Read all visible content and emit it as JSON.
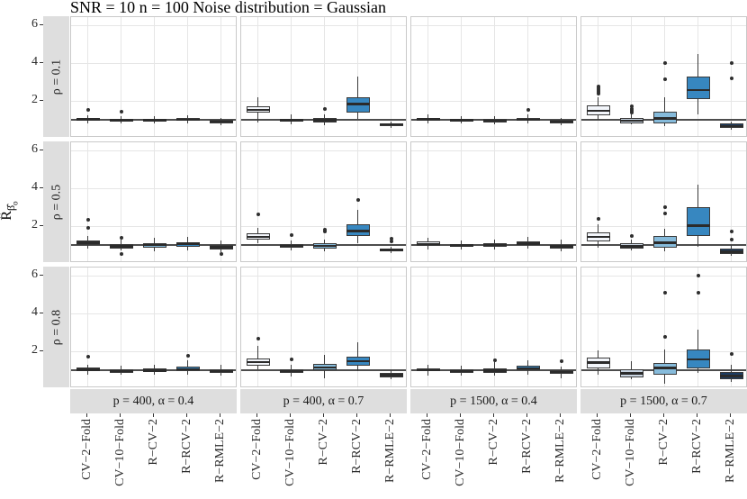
{
  "title": "SNR = 10 n = 100 Noise distribution = Gaussian",
  "y_axis": {
    "main": "R̂",
    "sub": "β̂",
    "subsub": "o",
    "ticks": [
      6,
      4,
      2
    ]
  },
  "chart_data": {
    "type": "boxplot-grid",
    "categories": [
      "CV−2−Fold",
      "CV−10−Fold",
      "R−CV−2",
      "R−RCV−2",
      "R−RMLE−2"
    ],
    "category_fills": [
      "#F2F5FA",
      "#C9D5E2",
      "#86BBDB",
      "#3787C0",
      "#1D3D63"
    ],
    "row_facets": [
      "ρ = 0.1",
      "ρ = 0.5",
      "ρ = 0.8"
    ],
    "col_facets": [
      "p = 400, α = 0.4",
      "p = 400, α = 0.7",
      "p = 1500, α = 0.4",
      "p = 1500, α = 0.7"
    ],
    "ylim": [
      0.07,
      6.45
    ],
    "y_major_gridlines": [
      2,
      4,
      6
    ],
    "reference_line": 1.0,
    "legend": "none",
    "facets": [
      {
        "row": 0,
        "col": 0,
        "boxes": [
          {
            "lo": 0.85,
            "q1": 0.97,
            "med": 1.05,
            "q3": 1.13,
            "hi": 1.28,
            "out": [
              1.55
            ]
          },
          {
            "lo": 0.82,
            "q1": 0.93,
            "med": 1.0,
            "q3": 1.06,
            "hi": 1.2,
            "out": [
              1.45
            ]
          },
          {
            "lo": 0.83,
            "q1": 0.93,
            "med": 1.0,
            "q3": 1.09,
            "hi": 1.22,
            "out": []
          },
          {
            "lo": 0.85,
            "q1": 0.95,
            "med": 1.02,
            "q3": 1.1,
            "hi": 1.27,
            "out": []
          },
          {
            "lo": 0.75,
            "q1": 0.85,
            "med": 0.92,
            "q3": 1.0,
            "hi": 1.1,
            "out": []
          }
        ]
      },
      {
        "row": 0,
        "col": 1,
        "boxes": [
          {
            "lo": 0.9,
            "q1": 1.38,
            "med": 1.55,
            "q3": 1.72,
            "hi": 2.2,
            "out": []
          },
          {
            "lo": 0.78,
            "q1": 0.92,
            "med": 1.0,
            "q3": 1.08,
            "hi": 1.3,
            "out": []
          },
          {
            "lo": 0.72,
            "q1": 0.88,
            "med": 1.0,
            "q3": 1.12,
            "hi": 1.3,
            "out": [
              1.6
            ]
          },
          {
            "lo": 1.05,
            "q1": 1.4,
            "med": 1.85,
            "q3": 2.2,
            "hi": 3.3,
            "out": []
          },
          {
            "lo": 0.6,
            "q1": 0.7,
            "med": 0.78,
            "q3": 0.85,
            "hi": 0.95,
            "out": []
          }
        ]
      },
      {
        "row": 0,
        "col": 2,
        "boxes": [
          {
            "lo": 0.85,
            "q1": 0.97,
            "med": 1.05,
            "q3": 1.13,
            "hi": 1.3,
            "out": []
          },
          {
            "lo": 0.82,
            "q1": 0.93,
            "med": 1.0,
            "q3": 1.07,
            "hi": 1.2,
            "out": []
          },
          {
            "lo": 0.8,
            "q1": 0.9,
            "med": 0.98,
            "q3": 1.07,
            "hi": 1.2,
            "out": []
          },
          {
            "lo": 0.83,
            "q1": 0.95,
            "med": 1.03,
            "q3": 1.12,
            "hi": 1.3,
            "out": [
              1.55
            ]
          },
          {
            "lo": 0.72,
            "q1": 0.85,
            "med": 0.92,
            "q3": 1.0,
            "hi": 1.12,
            "out": []
          }
        ]
      },
      {
        "row": 0,
        "col": 3,
        "boxes": [
          {
            "lo": 1.0,
            "q1": 1.25,
            "med": 1.5,
            "q3": 1.78,
            "hi": 2.2,
            "out": [
              2.4,
              2.5,
              2.6,
              2.7,
              2.8
            ]
          },
          {
            "lo": 0.78,
            "q1": 0.85,
            "med": 0.97,
            "q3": 1.12,
            "hi": 1.3,
            "out": [
              1.4,
              1.5,
              1.6,
              1.72
            ]
          },
          {
            "lo": 0.7,
            "q1": 0.85,
            "med": 1.1,
            "q3": 1.45,
            "hi": 2.2,
            "out": [
              3.15,
              4.0
            ]
          },
          {
            "lo": 1.3,
            "q1": 2.1,
            "med": 2.6,
            "q3": 3.3,
            "hi": 4.5,
            "out": []
          },
          {
            "lo": 0.5,
            "q1": 0.6,
            "med": 0.7,
            "q3": 0.82,
            "hi": 0.95,
            "out": [
              3.2,
              4.0
            ]
          }
        ]
      },
      {
        "row": 1,
        "col": 0,
        "boxes": [
          {
            "lo": 0.85,
            "q1": 1.0,
            "med": 1.13,
            "q3": 1.27,
            "hi": 1.5,
            "out": [
              1.95,
              2.35
            ]
          },
          {
            "lo": 0.75,
            "q1": 0.82,
            "med": 0.96,
            "q3": 1.06,
            "hi": 1.33,
            "out": [
              0.55,
              1.4
            ]
          },
          {
            "lo": 0.67,
            "q1": 0.87,
            "med": 1.02,
            "q3": 1.1,
            "hi": 1.38,
            "out": []
          },
          {
            "lo": 0.75,
            "q1": 0.93,
            "med": 1.1,
            "q3": 1.18,
            "hi": 1.47,
            "out": []
          },
          {
            "lo": 0.65,
            "q1": 0.78,
            "med": 0.9,
            "q3": 1.02,
            "hi": 1.28,
            "out": [
              0.55
            ]
          }
        ]
      },
      {
        "row": 1,
        "col": 1,
        "boxes": [
          {
            "lo": 1.1,
            "q1": 1.32,
            "med": 1.45,
            "q3": 1.62,
            "hi": 1.95,
            "out": [
              2.65
            ]
          },
          {
            "lo": 0.75,
            "q1": 0.9,
            "med": 0.98,
            "q3": 1.05,
            "hi": 1.25,
            "out": [
              1.55
            ]
          },
          {
            "lo": 0.7,
            "q1": 0.85,
            "med": 0.97,
            "q3": 1.1,
            "hi": 1.3,
            "out": [
              1.75,
              1.85
            ]
          },
          {
            "lo": 1.1,
            "q1": 1.5,
            "med": 1.75,
            "q3": 2.1,
            "hi": 2.9,
            "out": [
              3.4
            ]
          },
          {
            "lo": 0.6,
            "q1": 0.68,
            "med": 0.75,
            "q3": 0.82,
            "hi": 0.95,
            "out": [
              1.2,
              1.35
            ]
          }
        ]
      },
      {
        "row": 1,
        "col": 2,
        "boxes": [
          {
            "lo": 0.8,
            "q1": 0.97,
            "med": 1.08,
            "q3": 1.2,
            "hi": 1.38,
            "out": []
          },
          {
            "lo": 0.78,
            "q1": 0.92,
            "med": 1.0,
            "q3": 1.08,
            "hi": 1.25,
            "out": []
          },
          {
            "lo": 0.8,
            "q1": 0.93,
            "med": 1.02,
            "q3": 1.12,
            "hi": 1.3,
            "out": []
          },
          {
            "lo": 0.85,
            "q1": 1.0,
            "med": 1.1,
            "q3": 1.22,
            "hi": 1.45,
            "out": []
          },
          {
            "lo": 0.68,
            "q1": 0.85,
            "med": 0.95,
            "q3": 1.02,
            "hi": 1.3,
            "out": []
          }
        ]
      },
      {
        "row": 1,
        "col": 3,
        "boxes": [
          {
            "lo": 0.9,
            "q1": 1.2,
            "med": 1.45,
            "q3": 1.7,
            "hi": 2.1,
            "out": [
              2.4
            ]
          },
          {
            "lo": 0.75,
            "q1": 0.85,
            "med": 0.95,
            "q3": 1.1,
            "hi": 1.3,
            "out": [
              1.5
            ]
          },
          {
            "lo": 0.7,
            "q1": 0.9,
            "med": 1.15,
            "q3": 1.5,
            "hi": 1.9,
            "out": [
              2.7,
              3.0
            ]
          },
          {
            "lo": 0.95,
            "q1": 1.5,
            "med": 2.05,
            "q3": 3.0,
            "hi": 4.2,
            "out": []
          },
          {
            "lo": 0.45,
            "q1": 0.55,
            "med": 0.67,
            "q3": 0.85,
            "hi": 1.0,
            "out": [
              1.3,
              1.75
            ]
          }
        ]
      },
      {
        "row": 2,
        "col": 0,
        "boxes": [
          {
            "lo": 0.8,
            "q1": 0.95,
            "med": 1.05,
            "q3": 1.15,
            "hi": 1.3,
            "out": [
              1.75
            ]
          },
          {
            "lo": 0.78,
            "q1": 0.9,
            "med": 0.98,
            "q3": 1.07,
            "hi": 1.25,
            "out": []
          },
          {
            "lo": 0.78,
            "q1": 0.92,
            "med": 1.0,
            "q3": 1.1,
            "hi": 1.3,
            "out": []
          },
          {
            "lo": 0.8,
            "q1": 0.95,
            "med": 1.07,
            "q3": 1.22,
            "hi": 1.55,
            "out": [
              1.8
            ]
          },
          {
            "lo": 0.72,
            "q1": 0.88,
            "med": 0.97,
            "q3": 1.05,
            "hi": 1.3,
            "out": []
          }
        ]
      },
      {
        "row": 2,
        "col": 1,
        "boxes": [
          {
            "lo": 1.05,
            "q1": 1.28,
            "med": 1.45,
            "q3": 1.62,
            "hi": 2.3,
            "out": [
              2.7
            ]
          },
          {
            "lo": 0.7,
            "q1": 0.88,
            "med": 0.97,
            "q3": 1.08,
            "hi": 1.3,
            "out": [
              1.6
            ]
          },
          {
            "lo": 0.6,
            "q1": 1.0,
            "med": 1.17,
            "q3": 1.35,
            "hi": 1.85,
            "out": []
          },
          {
            "lo": 0.95,
            "q1": 1.25,
            "med": 1.5,
            "q3": 1.72,
            "hi": 2.5,
            "out": []
          },
          {
            "lo": 0.55,
            "q1": 0.65,
            "med": 0.75,
            "q3": 0.88,
            "hi": 1.0,
            "out": []
          }
        ]
      },
      {
        "row": 2,
        "col": 2,
        "boxes": [
          {
            "lo": 0.75,
            "q1": 0.95,
            "med": 1.03,
            "q3": 1.12,
            "hi": 1.3,
            "out": []
          },
          {
            "lo": 0.75,
            "q1": 0.9,
            "med": 0.97,
            "q3": 1.05,
            "hi": 1.25,
            "out": []
          },
          {
            "lo": 0.72,
            "q1": 0.9,
            "med": 1.0,
            "q3": 1.1,
            "hi": 1.45,
            "out": [
              1.55
            ]
          },
          {
            "lo": 0.8,
            "q1": 1.0,
            "med": 1.12,
            "q3": 1.25,
            "hi": 1.55,
            "out": []
          },
          {
            "lo": 0.6,
            "q1": 0.82,
            "med": 0.93,
            "q3": 1.03,
            "hi": 1.2,
            "out": [
              1.5
            ]
          }
        ]
      },
      {
        "row": 2,
        "col": 3,
        "boxes": [
          {
            "lo": 0.8,
            "q1": 1.13,
            "med": 1.42,
            "q3": 1.7,
            "hi": 2.05,
            "out": []
          },
          {
            "lo": 0.55,
            "q1": 0.65,
            "med": 0.85,
            "q3": 1.05,
            "hi": 1.5,
            "out": []
          },
          {
            "lo": 0.3,
            "q1": 0.8,
            "med": 1.15,
            "q3": 1.4,
            "hi": 2.1,
            "out": [
              2.8,
              5.1
            ]
          },
          {
            "lo": 0.9,
            "q1": 1.1,
            "med": 1.6,
            "q3": 2.1,
            "hi": 3.15,
            "out": [
              5.1,
              6.0
            ]
          },
          {
            "lo": 0.4,
            "q1": 0.55,
            "med": 0.72,
            "q3": 0.92,
            "hi": 1.3,
            "out": [
              1.9
            ]
          }
        ]
      }
    ]
  }
}
